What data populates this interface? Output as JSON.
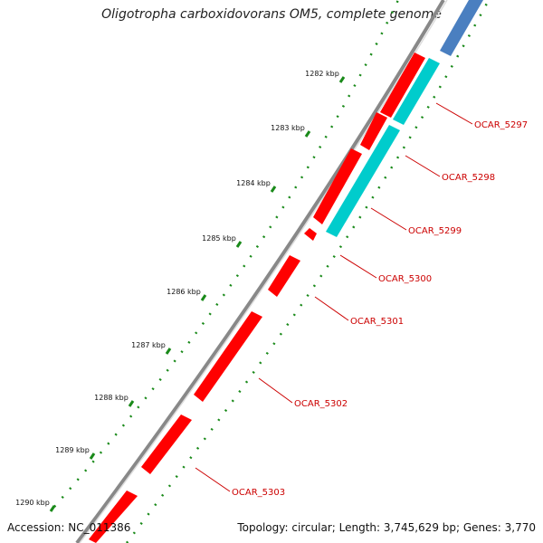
{
  "map": {
    "title": "Oligotropha carboxidovorans OM5, complete genome",
    "accession": "Accession: NC_011386",
    "summary": "Topology: circular; Length: 3,745,629 bp; Genes: 3,770"
  },
  "ruler": [
    {
      "label": "1282 kbp",
      "kbp": 1282
    },
    {
      "label": "1283 kbp",
      "kbp": 1283
    },
    {
      "label": "1284 kbp",
      "kbp": 1284
    },
    {
      "label": "1285 kbp",
      "kbp": 1285
    },
    {
      "label": "1286 kbp",
      "kbp": 1286
    },
    {
      "label": "1287 kbp",
      "kbp": 1287
    },
    {
      "label": "1288 kbp",
      "kbp": 1288
    },
    {
      "label": "1289 kbp",
      "kbp": 1289
    },
    {
      "label": "1290 kbp",
      "kbp": 1290
    }
  ],
  "genes": [
    {
      "label": "OCAR_5297"
    },
    {
      "label": "OCAR_5298"
    },
    {
      "label": "OCAR_5299"
    },
    {
      "label": "OCAR_5300"
    },
    {
      "label": "OCAR_5301"
    },
    {
      "label": "OCAR_5302"
    },
    {
      "label": "OCAR_5303"
    }
  ],
  "colors": {
    "backbone": "#888888",
    "cds_forward": "#ff0000",
    "cds_reverse": "#00cccc",
    "feature_blue": "#4a7fc0",
    "ticks_green": "#1a8a1a",
    "label_red": "#cc0000",
    "leader_red": "#cc0000"
  }
}
